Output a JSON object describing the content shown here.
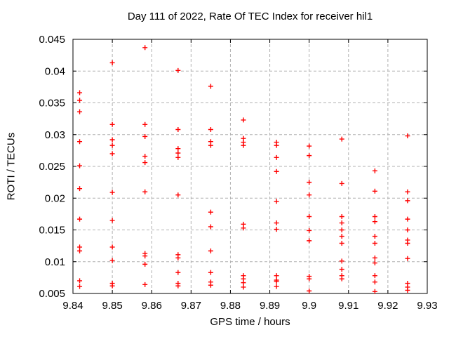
{
  "page": {
    "background": "#ffffff"
  },
  "chart_data": {
    "type": "scatter",
    "title": "Day 111 of 2022, Rate Of TEC Index for receiver hil1",
    "xlabel": "GPS time / hours",
    "ylabel": "ROTI / TECUs",
    "xlim": [
      9.84,
      9.93
    ],
    "ylim": [
      0.005,
      0.045
    ],
    "xtick_values": [
      9.84,
      9.85,
      9.86,
      9.87,
      9.88,
      9.89,
      9.9,
      9.91,
      9.92,
      9.93
    ],
    "xtick_labels": [
      "9.84",
      "9.85",
      "9.86",
      "9.87",
      "9.88",
      "9.89",
      "9.9",
      "9.91",
      "9.92",
      "9.93"
    ],
    "ytick_values": [
      0.005,
      0.01,
      0.015,
      0.02,
      0.025,
      0.03,
      0.035,
      0.04,
      0.045
    ],
    "ytick_labels": [
      "0.005",
      "0.01",
      "0.015",
      "0.02",
      "0.025",
      "0.03",
      "0.035",
      "0.04",
      "0.045"
    ],
    "grid": true,
    "legend_position": "none",
    "marker": {
      "shape": "plus",
      "color": "#ff0000",
      "size": 7
    },
    "axis_color": "#000000",
    "grid_color": "#b0b0b0",
    "text_color": "#000000",
    "series": [
      {
        "name": "roti",
        "points": [
          [
            9.8417,
            0.0366
          ],
          [
            9.8417,
            0.0354
          ],
          [
            9.8417,
            0.0336
          ],
          [
            9.8417,
            0.0289
          ],
          [
            9.8417,
            0.0251
          ],
          [
            9.8417,
            0.0215
          ],
          [
            9.8417,
            0.0167
          ],
          [
            9.8417,
            0.0123
          ],
          [
            9.8417,
            0.0117
          ],
          [
            9.8417,
            0.007
          ],
          [
            9.8417,
            0.0061
          ],
          [
            9.85,
            0.0413
          ],
          [
            9.85,
            0.0316
          ],
          [
            9.85,
            0.0292
          ],
          [
            9.85,
            0.0283
          ],
          [
            9.85,
            0.027
          ],
          [
            9.85,
            0.0209
          ],
          [
            9.85,
            0.0165
          ],
          [
            9.85,
            0.0123
          ],
          [
            9.85,
            0.0102
          ],
          [
            9.85,
            0.0066
          ],
          [
            9.85,
            0.0062
          ],
          [
            9.8583,
            0.0437
          ],
          [
            9.8583,
            0.0316
          ],
          [
            9.8583,
            0.0297
          ],
          [
            9.8583,
            0.0266
          ],
          [
            9.8583,
            0.0256
          ],
          [
            9.8583,
            0.021
          ],
          [
            9.8583,
            0.0113
          ],
          [
            9.8583,
            0.0109
          ],
          [
            9.8583,
            0.0096
          ],
          [
            9.8583,
            0.0064
          ],
          [
            9.8667,
            0.0401
          ],
          [
            9.8667,
            0.0308
          ],
          [
            9.8667,
            0.0278
          ],
          [
            9.8667,
            0.0271
          ],
          [
            9.8667,
            0.0264
          ],
          [
            9.8667,
            0.0205
          ],
          [
            9.8667,
            0.0111
          ],
          [
            9.8667,
            0.0106
          ],
          [
            9.8667,
            0.0083
          ],
          [
            9.8667,
            0.0066
          ],
          [
            9.8667,
            0.0062
          ],
          [
            9.875,
            0.0376
          ],
          [
            9.875,
            0.0308
          ],
          [
            9.875,
            0.0289
          ],
          [
            9.875,
            0.0283
          ],
          [
            9.875,
            0.0178
          ],
          [
            9.875,
            0.0155
          ],
          [
            9.875,
            0.0117
          ],
          [
            9.875,
            0.0083
          ],
          [
            9.875,
            0.0068
          ],
          [
            9.875,
            0.0063
          ],
          [
            9.8833,
            0.0323
          ],
          [
            9.8833,
            0.0294
          ],
          [
            9.8833,
            0.0288
          ],
          [
            9.8833,
            0.0283
          ],
          [
            9.8833,
            0.0159
          ],
          [
            9.8833,
            0.0153
          ],
          [
            9.8833,
            0.0078
          ],
          [
            9.8833,
            0.0073
          ],
          [
            9.8833,
            0.0067
          ],
          [
            9.8833,
            0.006
          ],
          [
            9.8917,
            0.0288
          ],
          [
            9.8917,
            0.0283
          ],
          [
            9.8917,
            0.0264
          ],
          [
            9.8917,
            0.0242
          ],
          [
            9.8917,
            0.0195
          ],
          [
            9.8917,
            0.0161
          ],
          [
            9.8917,
            0.0151
          ],
          [
            9.8917,
            0.0078
          ],
          [
            9.8917,
            0.0071
          ],
          [
            9.8917,
            0.0069
          ],
          [
            9.8917,
            0.0061
          ],
          [
            9.9,
            0.0282
          ],
          [
            9.9,
            0.0267
          ],
          [
            9.9,
            0.0225
          ],
          [
            9.9,
            0.0205
          ],
          [
            9.9,
            0.0171
          ],
          [
            9.9,
            0.0149
          ],
          [
            9.9,
            0.0133
          ],
          [
            9.9,
            0.0077
          ],
          [
            9.9,
            0.0073
          ],
          [
            9.9,
            0.0054
          ],
          [
            9.9083,
            0.0293
          ],
          [
            9.9083,
            0.0223
          ],
          [
            9.9083,
            0.0171
          ],
          [
            9.9083,
            0.0161
          ],
          [
            9.9083,
            0.015
          ],
          [
            9.9083,
            0.014
          ],
          [
            9.9083,
            0.0129
          ],
          [
            9.9083,
            0.0101
          ],
          [
            9.9083,
            0.0088
          ],
          [
            9.9083,
            0.0078
          ],
          [
            9.9083,
            0.0073
          ],
          [
            9.9167,
            0.0243
          ],
          [
            9.9167,
            0.0211
          ],
          [
            9.9167,
            0.0171
          ],
          [
            9.9167,
            0.0163
          ],
          [
            9.9167,
            0.014
          ],
          [
            9.9167,
            0.0129
          ],
          [
            9.9167,
            0.0106
          ],
          [
            9.9167,
            0.0098
          ],
          [
            9.9167,
            0.0078
          ],
          [
            9.9167,
            0.0068
          ],
          [
            9.9167,
            0.0053
          ],
          [
            9.925,
            0.0298
          ],
          [
            9.925,
            0.021
          ],
          [
            9.925,
            0.0196
          ],
          [
            9.925,
            0.0167
          ],
          [
            9.925,
            0.015
          ],
          [
            9.925,
            0.0134
          ],
          [
            9.925,
            0.0129
          ],
          [
            9.925,
            0.0105
          ],
          [
            9.925,
            0.0066
          ],
          [
            9.925,
            0.006
          ],
          [
            9.925,
            0.0055
          ]
        ]
      }
    ]
  }
}
